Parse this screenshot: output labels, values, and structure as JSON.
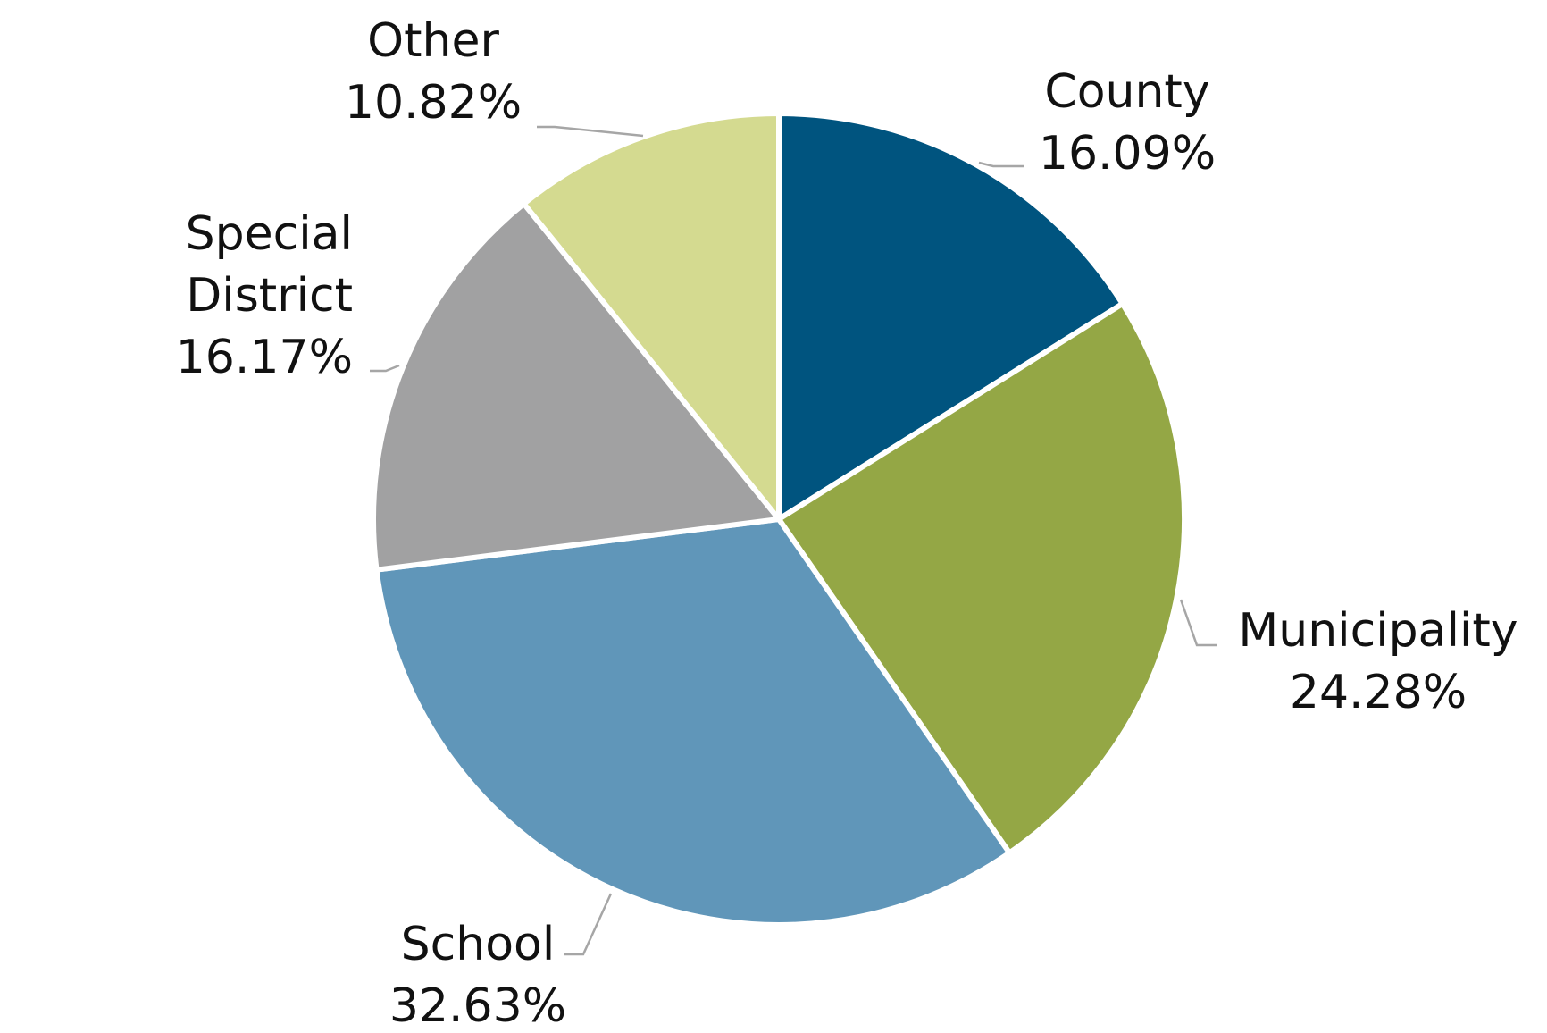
{
  "chart_data": {
    "type": "pie",
    "start_angle_deg": 0,
    "direction": "clockwise",
    "slices": [
      {
        "name": "County",
        "label_lines": [
          "County"
        ],
        "value": 16.09,
        "value_label": "16.09%",
        "color": "#00547f"
      },
      {
        "name": "Municipality",
        "label_lines": [
          "Municipality"
        ],
        "value": 24.28,
        "value_label": "24.28%",
        "color": "#94a745"
      },
      {
        "name": "School",
        "label_lines": [
          "School"
        ],
        "value": 32.63,
        "value_label": "32.63%",
        "color": "#6096b9"
      },
      {
        "name": "Special District",
        "label_lines": [
          "Special",
          "District"
        ],
        "value": 16.17,
        "value_label": "16.17%",
        "color": "#a1a1a2"
      },
      {
        "name": "Other",
        "label_lines": [
          "Other"
        ],
        "value": 10.82,
        "value_label": "10.82%",
        "color": "#d4da90"
      }
    ]
  }
}
